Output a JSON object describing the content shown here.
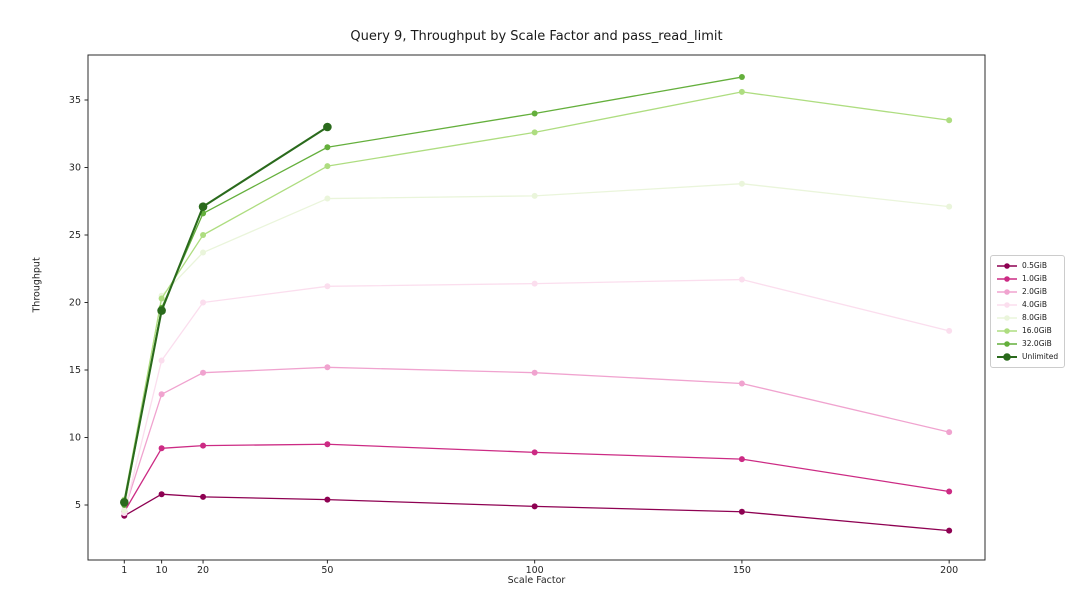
{
  "chart_data": {
    "type": "line",
    "title": "Query 9, Throughput by Scale Factor and pass_read_limit",
    "xlabel": "Scale Factor",
    "ylabel": "Throughput",
    "x": [
      1,
      10,
      20,
      50,
      100,
      150,
      200
    ],
    "xticks": [
      1,
      10,
      20,
      50,
      100,
      150,
      200
    ],
    "yticks": [
      5,
      10,
      15,
      20,
      25,
      30,
      35
    ],
    "xlim": [
      -7.8,
      208.7
    ],
    "ylim": [
      0.9,
      38.3
    ],
    "grid": false,
    "legend_title": null,
    "legend_position": "right outside axes, vertically centered",
    "series": [
      {
        "name": "0.5GiB",
        "color": "#8E0152",
        "values": [
          4.2,
          5.8,
          5.6,
          5.4,
          4.9,
          4.5,
          3.1
        ]
      },
      {
        "name": "1.0GiB",
        "color": "#CC2B84",
        "values": [
          4.5,
          9.2,
          9.4,
          9.5,
          8.9,
          8.4,
          6.0
        ]
      },
      {
        "name": "2.0GiB",
        "color": "#F0A3CF",
        "values": [
          4.6,
          13.2,
          14.8,
          15.2,
          14.8,
          14.0,
          10.4
        ]
      },
      {
        "name": "4.0GiB",
        "color": "#FBDEEE",
        "values": [
          4.4,
          15.7,
          20.0,
          21.2,
          21.4,
          21.7,
          17.9
        ]
      },
      {
        "name": "8.0GiB",
        "color": "#EAF5DB",
        "values": [
          4.6,
          20.5,
          23.7,
          27.7,
          27.9,
          28.8,
          27.1
        ]
      },
      {
        "name": "16.0GiB",
        "color": "#AEDD80",
        "values": [
          5.4,
          20.3,
          25.0,
          30.1,
          32.6,
          35.6,
          33.5
        ]
      },
      {
        "name": "32.0GiB",
        "color": "#64AF3C",
        "values": [
          5.0,
          19.6,
          26.6,
          31.5,
          34.0,
          36.7,
          null
        ]
      },
      {
        "name": "Unlimited",
        "color": "#2A6A1C",
        "values": [
          5.2,
          19.4,
          27.1,
          33.0,
          null,
          null,
          null
        ],
        "emphasis": true
      }
    ],
    "axis_color": "#2b2b2b",
    "tick_label_color": "#262626"
  }
}
